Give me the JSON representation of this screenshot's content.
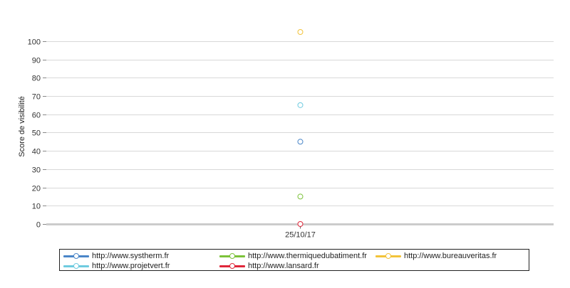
{
  "chart_data": {
    "type": "scatter",
    "ylabel": "Score de visibilité",
    "xlabel": "",
    "categories": [
      "25/10/17"
    ],
    "ylim": [
      0,
      105
    ],
    "yticks": [
      0,
      10,
      20,
      30,
      40,
      50,
      60,
      70,
      80,
      90,
      100
    ],
    "grid": true,
    "legend_position": "bottom",
    "series": [
      {
        "name": "http://www.systherm.fr",
        "color": "#4a86c8",
        "values": [
          45
        ]
      },
      {
        "name": "http://www.thermiquedubatiment.fr",
        "color": "#7cc23a",
        "values": [
          15
        ]
      },
      {
        "name": "http://www.bureauveritas.fr",
        "color": "#f2c33a",
        "values": [
          105
        ]
      },
      {
        "name": "http://www.projetvert.fr",
        "color": "#6fcbe0",
        "values": [
          65
        ]
      },
      {
        "name": "http://www.lansard.fr",
        "color": "#e0273a",
        "values": [
          0
        ]
      }
    ]
  }
}
